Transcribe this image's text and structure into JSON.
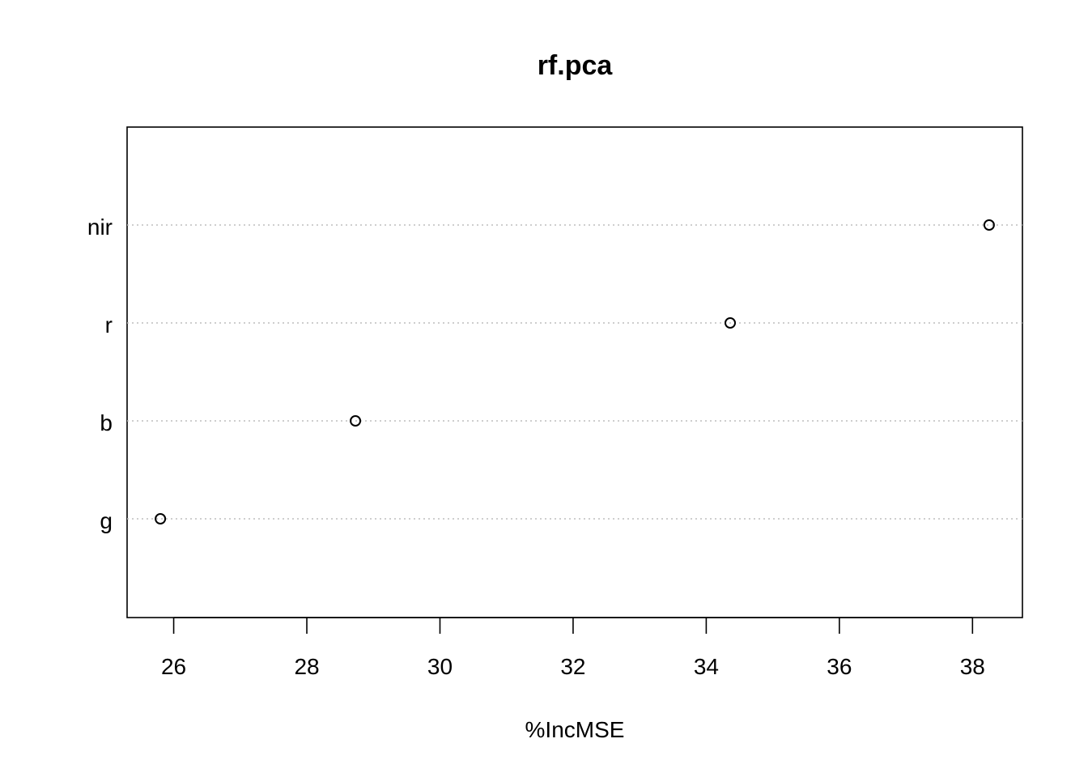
{
  "chart_data": {
    "type": "scatter",
    "title": "rf.pca",
    "xlabel": "%IncMSE",
    "ylabel": "",
    "categories": [
      "g",
      "b",
      "r",
      "nir"
    ],
    "values": [
      25.8,
      28.73,
      34.36,
      38.25
    ],
    "xlim": [
      25.3,
      38.75
    ],
    "xticks": [
      "26",
      "28",
      "30",
      "32",
      "34",
      "36",
      "38"
    ],
    "grid": false,
    "guide_lines": true,
    "point_shape": "open-circle"
  }
}
